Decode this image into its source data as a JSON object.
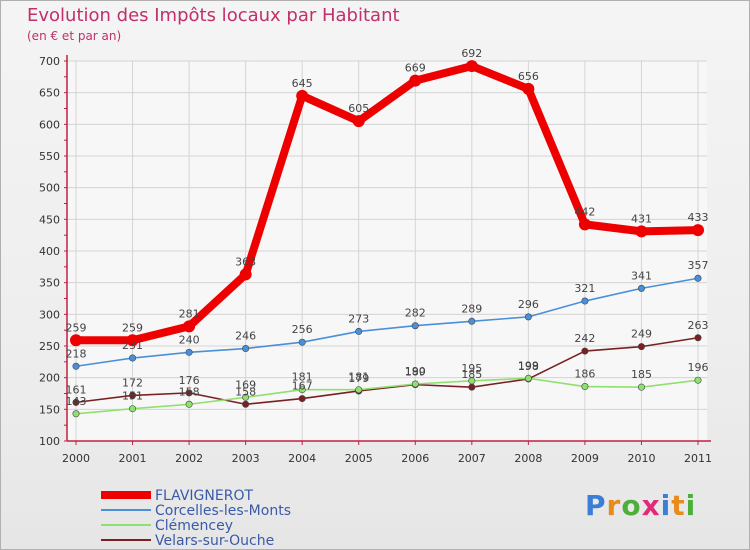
{
  "chart_data": {
    "type": "line",
    "title": "Evolution des Impôts locaux par Habitant",
    "subtitle": "(en € et par an)",
    "categories": [
      "2000",
      "2001",
      "2002",
      "2003",
      "2004",
      "2005",
      "2006",
      "2007",
      "2008",
      "2009",
      "2010",
      "2011"
    ],
    "ylim": [
      100,
      700
    ],
    "yticks": [
      100,
      150,
      200,
      250,
      300,
      350,
      400,
      450,
      500,
      550,
      600,
      650,
      700
    ],
    "grid": true,
    "legend_position": "bottom-left",
    "series": [
      {
        "name": "FLAVIGNEROT",
        "color": "#ee0000",
        "values": [
          259,
          259,
          281,
          363,
          645,
          605,
          669,
          692,
          656,
          442,
          431,
          433
        ]
      },
      {
        "name": "Corcelles-les-Monts",
        "color": "#4a90d9",
        "values": [
          218,
          231,
          240,
          246,
          256,
          273,
          282,
          289,
          296,
          321,
          341,
          357
        ]
      },
      {
        "name": "Clémencey",
        "color": "#90e070",
        "values": [
          143,
          151,
          158,
          169,
          181,
          181,
          190,
          195,
          199,
          186,
          185,
          196
        ]
      },
      {
        "name": "Velars-sur-Ouche",
        "color": "#7a2020",
        "values": [
          161,
          172,
          176,
          158,
          167,
          179,
          189,
          185,
          198,
          242,
          249,
          263
        ]
      }
    ]
  },
  "logo": {
    "text": "Proxiti",
    "letters": [
      "P",
      "r",
      "o",
      "x",
      "i",
      "t",
      "i"
    ],
    "colors": [
      "#3a7fd5",
      "#e98a1c",
      "#4caf3a",
      "#e02b7a",
      "#3a7fd5",
      "#e98a1c",
      "#4caf3a"
    ]
  }
}
